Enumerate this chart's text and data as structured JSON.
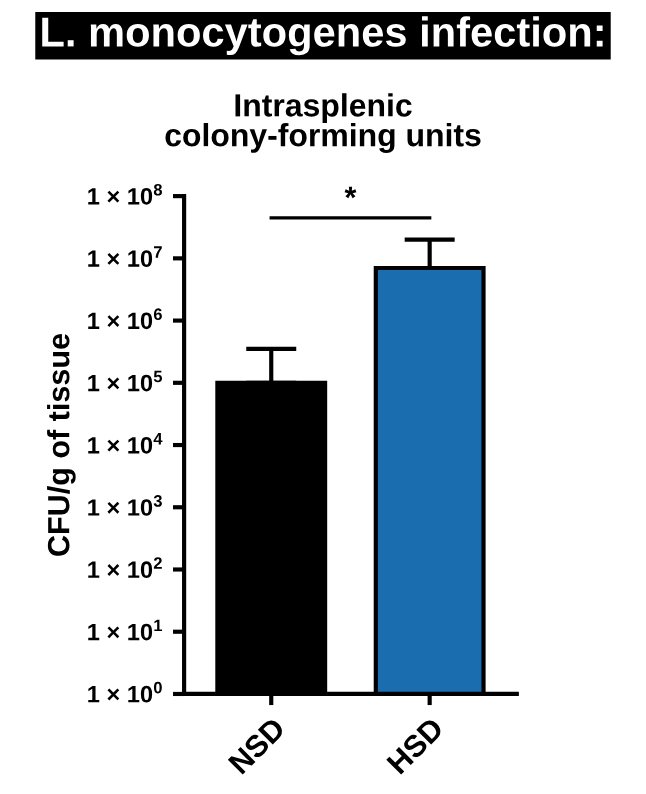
{
  "chart_data": {
    "type": "bar",
    "title": "L. monocytogenes infection:",
    "subtitle": "Intrasplenic\ncolony-forming units",
    "ylabel": "CFU/g of tissue",
    "categories": [
      "NSD",
      "HSD"
    ],
    "values": [
      100000,
      7000000
    ],
    "colors": [
      "#000000",
      "#1a6eb0"
    ],
    "errors": [
      [
        100000,
        350000
      ],
      [
        7000000,
        20000000
      ]
    ],
    "log": "y",
    "ylim": [
      1,
      100000000
    ],
    "yticks": [
      {
        "value": 1,
        "label": "1 × 10$^{0}$"
      },
      {
        "value": 10,
        "label": "1 × 10$^{1}$"
      },
      {
        "value": 100,
        "label": "1 × 10$^{2}$"
      },
      {
        "value": 1000,
        "label": "1 × 10$^{3}$"
      },
      {
        "value": 10000,
        "label": "1 × 10$^{4}$"
      },
      {
        "value": 100000,
        "label": "1 × 10$^{5}$"
      },
      {
        "value": 1000000,
        "label": "1 × 10$^{6}$"
      },
      {
        "value": 10000000,
        "label": "1 × 10$^{7}$"
      },
      {
        "value": 100000000,
        "label": "1 × 10$^{8}$"
      }
    ],
    "annotations": [
      "*"
    ],
    "grid": false,
    "legend": false
  }
}
